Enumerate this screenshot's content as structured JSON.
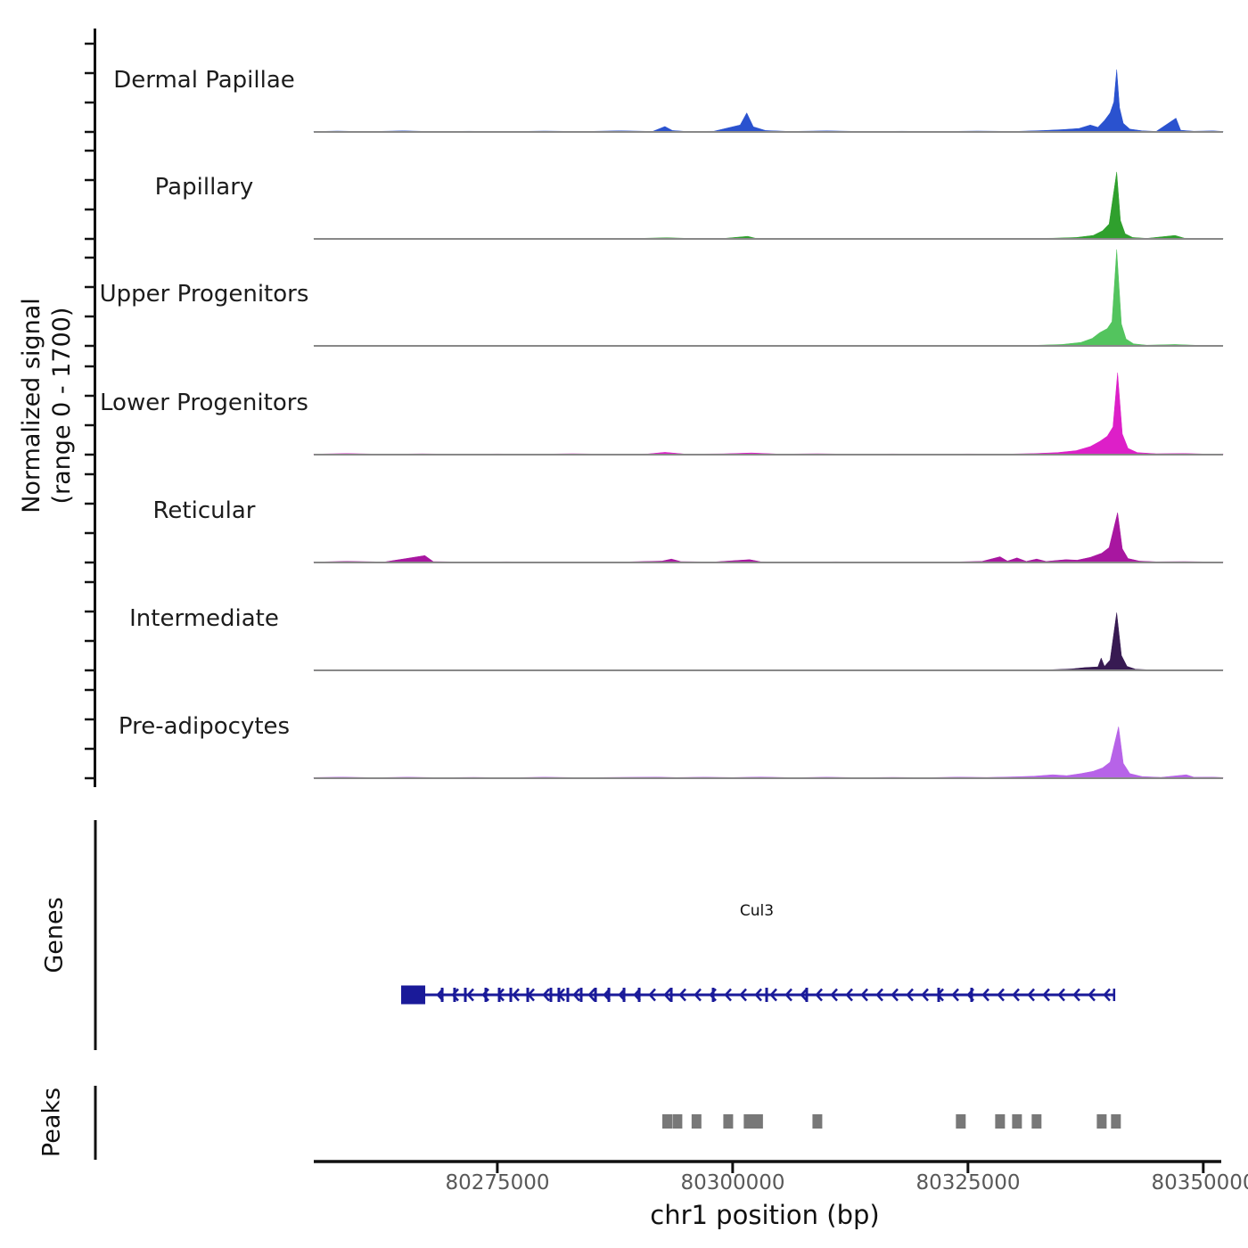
{
  "chart_data": {
    "type": "area",
    "title": "",
    "xlabel": "chr1 position (bp)",
    "ylabel_line1": "Normalized signal",
    "ylabel_line2": "(range 0 - 1700)",
    "y_range": [
      0,
      1700
    ],
    "xlim": [
      80255500,
      80352100
    ],
    "grid": false,
    "legend_position": "none",
    "x_ticks": [
      {
        "bp": 80275000,
        "label": "80275000"
      },
      {
        "bp": 80300000,
        "label": "80300000"
      },
      {
        "bp": 80325000,
        "label": "80325000"
      },
      {
        "bp": 80350000,
        "label": "80350000"
      }
    ],
    "sections": {
      "genes_label": "Genes",
      "peaks_label": "Peaks"
    },
    "tracks": [
      {
        "name": "Dermal Papillae",
        "color": "#2a52cf",
        "points": [
          [
            80255500,
            8
          ],
          [
            80258000,
            15
          ],
          [
            80261000,
            6
          ],
          [
            80265000,
            18
          ],
          [
            80268000,
            8
          ],
          [
            80272000,
            12
          ],
          [
            80276000,
            6
          ],
          [
            80280000,
            15
          ],
          [
            80284000,
            8
          ],
          [
            80288000,
            20
          ],
          [
            80291500,
            10
          ],
          [
            80292800,
            95
          ],
          [
            80293600,
            25
          ],
          [
            80295000,
            10
          ],
          [
            80298000,
            12
          ],
          [
            80300800,
            120
          ],
          [
            80301500,
            330
          ],
          [
            80302200,
            90
          ],
          [
            80303500,
            25
          ],
          [
            80306000,
            10
          ],
          [
            80310000,
            18
          ],
          [
            80314000,
            8
          ],
          [
            80318000,
            12
          ],
          [
            80322000,
            8
          ],
          [
            80326000,
            15
          ],
          [
            80330000,
            10
          ],
          [
            80333000,
            25
          ],
          [
            80335000,
            40
          ],
          [
            80336800,
            60
          ],
          [
            80338000,
            120
          ],
          [
            80338800,
            80
          ],
          [
            80339500,
            200
          ],
          [
            80340100,
            330
          ],
          [
            80340500,
            520
          ],
          [
            80340800,
            1080
          ],
          [
            80341100,
            420
          ],
          [
            80341500,
            150
          ],
          [
            80342200,
            50
          ],
          [
            80343500,
            20
          ],
          [
            80345000,
            10
          ],
          [
            80347100,
            240
          ],
          [
            80347600,
            30
          ],
          [
            80349000,
            12
          ],
          [
            80351000,
            18
          ],
          [
            80352100,
            10
          ]
        ]
      },
      {
        "name": "Papillary",
        "color": "#2fa02d",
        "points": [
          [
            80255500,
            5
          ],
          [
            80260000,
            8
          ],
          [
            80265000,
            4
          ],
          [
            80270000,
            6
          ],
          [
            80275000,
            5
          ],
          [
            80280000,
            8
          ],
          [
            80285000,
            5
          ],
          [
            80290000,
            10
          ],
          [
            80293000,
            20
          ],
          [
            80296000,
            6
          ],
          [
            80299000,
            8
          ],
          [
            80301600,
            45
          ],
          [
            80302400,
            12
          ],
          [
            80306000,
            5
          ],
          [
            80310000,
            8
          ],
          [
            80315000,
            4
          ],
          [
            80320000,
            6
          ],
          [
            80325000,
            5
          ],
          [
            80330000,
            8
          ],
          [
            80334000,
            12
          ],
          [
            80336500,
            25
          ],
          [
            80338300,
            60
          ],
          [
            80339300,
            140
          ],
          [
            80340000,
            260
          ],
          [
            80340800,
            1160
          ],
          [
            80341200,
            320
          ],
          [
            80341700,
            90
          ],
          [
            80342500,
            25
          ],
          [
            80344000,
            10
          ],
          [
            80347000,
            60
          ],
          [
            80348000,
            12
          ],
          [
            80352100,
            6
          ]
        ]
      },
      {
        "name": "Upper Progenitors",
        "color": "#53c45e",
        "points": [
          [
            80255500,
            4
          ],
          [
            80262000,
            6
          ],
          [
            80270000,
            4
          ],
          [
            80278000,
            6
          ],
          [
            80286000,
            4
          ],
          [
            80294000,
            8
          ],
          [
            80302000,
            10
          ],
          [
            80310000,
            5
          ],
          [
            80318000,
            6
          ],
          [
            80326000,
            5
          ],
          [
            80332000,
            10
          ],
          [
            80335000,
            25
          ],
          [
            80337000,
            60
          ],
          [
            80338200,
            130
          ],
          [
            80339000,
            230
          ],
          [
            80339800,
            300
          ],
          [
            80340300,
            420
          ],
          [
            80340800,
            1670
          ],
          [
            80341300,
            380
          ],
          [
            80341800,
            120
          ],
          [
            80342600,
            35
          ],
          [
            80344000,
            12
          ],
          [
            80347000,
            25
          ],
          [
            80350000,
            6
          ],
          [
            80352100,
            5
          ]
        ]
      },
      {
        "name": "Lower Progenitors",
        "color": "#dd1fc8",
        "points": [
          [
            80255500,
            10
          ],
          [
            80259000,
            18
          ],
          [
            80263000,
            8
          ],
          [
            80267000,
            14
          ],
          [
            80271000,
            8
          ],
          [
            80275000,
            12
          ],
          [
            80279000,
            8
          ],
          [
            80283000,
            15
          ],
          [
            80287000,
            8
          ],
          [
            80291000,
            12
          ],
          [
            80292800,
            40
          ],
          [
            80295000,
            10
          ],
          [
            80299000,
            14
          ],
          [
            80302000,
            30
          ],
          [
            80305000,
            10
          ],
          [
            80309000,
            15
          ],
          [
            80313000,
            8
          ],
          [
            80317000,
            12
          ],
          [
            80321000,
            8
          ],
          [
            80325000,
            12
          ],
          [
            80329000,
            10
          ],
          [
            80332000,
            18
          ],
          [
            80334500,
            35
          ],
          [
            80336500,
            70
          ],
          [
            80338000,
            140
          ],
          [
            80339000,
            230
          ],
          [
            80339800,
            320
          ],
          [
            80340400,
            480
          ],
          [
            80340900,
            1420
          ],
          [
            80341400,
            360
          ],
          [
            80342000,
            110
          ],
          [
            80343000,
            35
          ],
          [
            80345000,
            15
          ],
          [
            80348000,
            20
          ],
          [
            80350500,
            10
          ],
          [
            80352100,
            12
          ]
        ]
      },
      {
        "name": "Reticular",
        "color": "#a816a0",
        "points": [
          [
            80255500,
            8
          ],
          [
            80259000,
            20
          ],
          [
            80263000,
            10
          ],
          [
            80267300,
            120
          ],
          [
            80268200,
            15
          ],
          [
            80272000,
            8
          ],
          [
            80276000,
            12
          ],
          [
            80280000,
            6
          ],
          [
            80284000,
            10
          ],
          [
            80288000,
            8
          ],
          [
            80292500,
            25
          ],
          [
            80293500,
            60
          ],
          [
            80294500,
            15
          ],
          [
            80298000,
            10
          ],
          [
            80301800,
            50
          ],
          [
            80303000,
            12
          ],
          [
            80307000,
            8
          ],
          [
            80311000,
            12
          ],
          [
            80315000,
            6
          ],
          [
            80319000,
            10
          ],
          [
            80323000,
            8
          ],
          [
            80326500,
            20
          ],
          [
            80328400,
            100
          ],
          [
            80329200,
            25
          ],
          [
            80330200,
            80
          ],
          [
            80331200,
            20
          ],
          [
            80332300,
            60
          ],
          [
            80333300,
            18
          ],
          [
            80335400,
            50
          ],
          [
            80336600,
            40
          ],
          [
            80338000,
            90
          ],
          [
            80339200,
            160
          ],
          [
            80340000,
            260
          ],
          [
            80340900,
            865
          ],
          [
            80341400,
            240
          ],
          [
            80342000,
            70
          ],
          [
            80343200,
            25
          ],
          [
            80345000,
            12
          ],
          [
            80348000,
            15
          ],
          [
            80352100,
            8
          ]
        ]
      },
      {
        "name": "Intermediate",
        "color": "#371a52",
        "points": [
          [
            80255500,
            5
          ],
          [
            80261000,
            8
          ],
          [
            80267000,
            5
          ],
          [
            80273000,
            8
          ],
          [
            80279000,
            4
          ],
          [
            80285000,
            8
          ],
          [
            80291000,
            6
          ],
          [
            80297000,
            8
          ],
          [
            80303000,
            10
          ],
          [
            80309000,
            5
          ],
          [
            80315000,
            8
          ],
          [
            80321000,
            5
          ],
          [
            80327000,
            8
          ],
          [
            80331000,
            6
          ],
          [
            80334000,
            12
          ],
          [
            80336000,
            25
          ],
          [
            80337500,
            50
          ],
          [
            80338800,
            60
          ],
          [
            80339150,
            215
          ],
          [
            80339500,
            70
          ],
          [
            80340100,
            180
          ],
          [
            80340800,
            1000
          ],
          [
            80341300,
            260
          ],
          [
            80341900,
            70
          ],
          [
            80342800,
            20
          ],
          [
            80344500,
            8
          ],
          [
            80348000,
            10
          ],
          [
            80352100,
            5
          ]
        ]
      },
      {
        "name": "Pre-adipocytes",
        "color": "#b763e8",
        "points": [
          [
            80255500,
            12
          ],
          [
            80258500,
            20
          ],
          [
            80262000,
            10
          ],
          [
            80265500,
            18
          ],
          [
            80269000,
            10
          ],
          [
            80272500,
            16
          ],
          [
            80276000,
            8
          ],
          [
            80280000,
            18
          ],
          [
            80284000,
            10
          ],
          [
            80288000,
            15
          ],
          [
            80292000,
            20
          ],
          [
            80294000,
            12
          ],
          [
            80297000,
            18
          ],
          [
            80300000,
            12
          ],
          [
            80303000,
            22
          ],
          [
            80306500,
            10
          ],
          [
            80310000,
            18
          ],
          [
            80313500,
            10
          ],
          [
            80317000,
            15
          ],
          [
            80320500,
            10
          ],
          [
            80324000,
            20
          ],
          [
            80327000,
            14
          ],
          [
            80330000,
            25
          ],
          [
            80332000,
            35
          ],
          [
            80334000,
            60
          ],
          [
            80335500,
            45
          ],
          [
            80337000,
            80
          ],
          [
            80338300,
            120
          ],
          [
            80339300,
            180
          ],
          [
            80340100,
            280
          ],
          [
            80341000,
            895
          ],
          [
            80341500,
            260
          ],
          [
            80342200,
            80
          ],
          [
            80343500,
            30
          ],
          [
            80345500,
            15
          ],
          [
            80348200,
            60
          ],
          [
            80349000,
            18
          ],
          [
            80351000,
            20
          ],
          [
            80352100,
            12
          ]
        ]
      }
    ],
    "gene": {
      "label": "Cul3",
      "strand": "-",
      "color": "#1a1a99",
      "start_bp": 80264780,
      "end_bp": 80340530,
      "utr_box": {
        "start": 80264780,
        "end": 80267340
      },
      "exon_ticks_bp": [
        80269140,
        80270460,
        80271600,
        80273780,
        80275200,
        80276430,
        80278230,
        80280690,
        80281540,
        80282490,
        80283910,
        80285430,
        80286850,
        80288460,
        80290070,
        80293480,
        80297930,
        80303610,
        80307870,
        80321890,
        80325390
      ]
    },
    "peaks": {
      "color": "#787878",
      "width_bp": 1040,
      "centers_bp": [
        80293050,
        80294130,
        80296160,
        80299530,
        80301700,
        80302700,
        80309000,
        80324240,
        80328410,
        80330210,
        80332290,
        80339210,
        80340720
      ]
    }
  }
}
